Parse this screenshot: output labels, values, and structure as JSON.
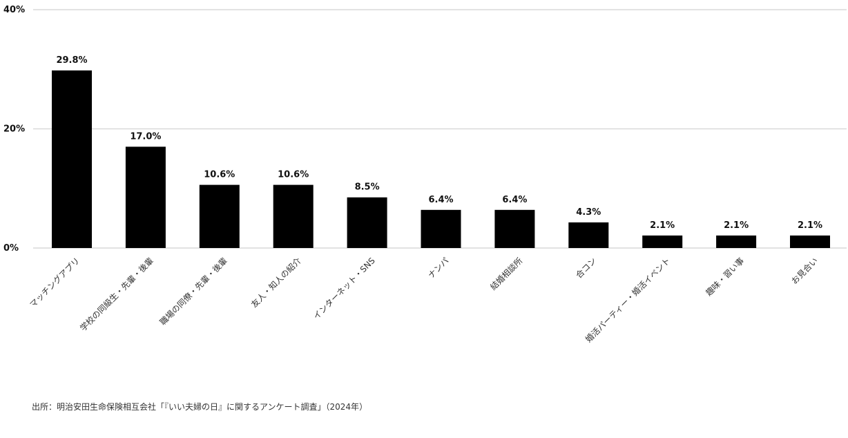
{
  "chart_data": {
    "type": "bar",
    "categories": [
      "マッチングアプリ",
      "学校の同級生・先輩・後輩",
      "職場の同僚・先輩・後輩",
      "友人・知人の紹介",
      "インターネット・SNS",
      "ナンパ",
      "結婚相談所",
      "合コン",
      "婚活パーティー・婚活イベント",
      "趣味・習い事",
      "お見合い"
    ],
    "values": [
      29.8,
      17.0,
      10.6,
      10.6,
      8.5,
      6.4,
      6.4,
      4.3,
      2.1,
      2.1,
      2.1
    ],
    "data_labels": [
      "29.8%",
      "17.0%",
      "10.6%",
      "10.6%",
      "8.5%",
      "6.4%",
      "6.4%",
      "4.3%",
      "2.1%",
      "2.1%",
      "2.1%"
    ],
    "y_ticks": [
      0,
      20,
      40
    ],
    "y_tick_labels": [
      "0%",
      "20%",
      "40%"
    ],
    "ylim": [
      0,
      40
    ],
    "grid": true,
    "bar_color": "#000000",
    "grid_color": "#d9d9d9"
  },
  "source_note": "出所：明治安田生命保険相互会社「『いい夫婦の日』に関するアンケート調査」（2024年）"
}
